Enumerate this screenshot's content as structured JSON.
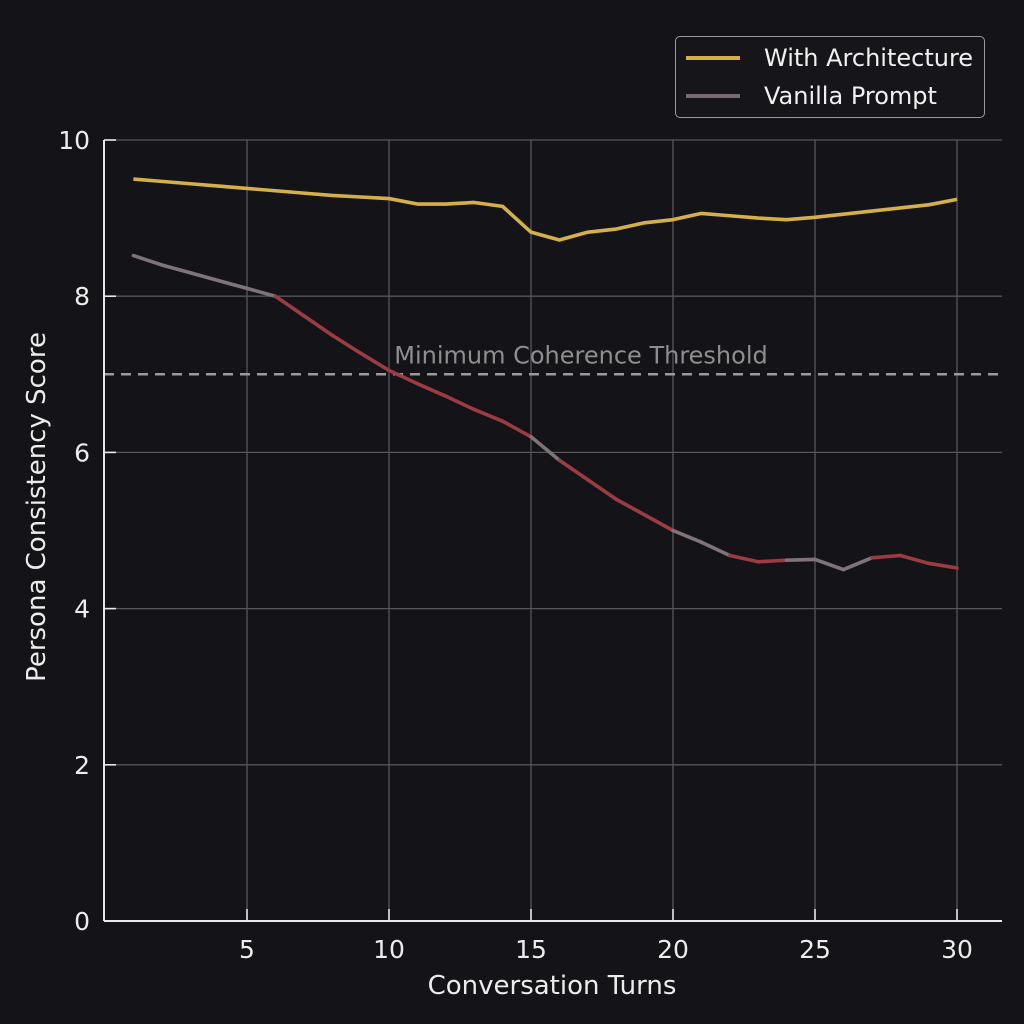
{
  "chart_data": {
    "type": "line",
    "title": "",
    "xlabel": "Conversation Turns",
    "ylabel": "Persona Consistency Score",
    "xlim": [
      0.2,
      31.7
    ],
    "ylim": [
      0,
      10
    ],
    "xticks": [
      5,
      10,
      15,
      20,
      25,
      30
    ],
    "yticks": [
      0,
      2,
      4,
      6,
      8,
      10
    ],
    "grid": true,
    "legend_position": "upper right",
    "x": [
      1,
      2,
      3,
      4,
      5,
      6,
      7,
      8,
      9,
      10,
      11,
      12,
      13,
      14,
      15,
      16,
      17,
      18,
      19,
      20,
      21,
      22,
      23,
      24,
      25,
      26,
      27,
      28,
      29,
      30
    ],
    "series": [
      {
        "name": "With Architecture",
        "color": "#d4b04a",
        "values": [
          9.5,
          9.47,
          9.44,
          9.41,
          9.38,
          9.35,
          9.32,
          9.29,
          9.27,
          9.25,
          9.18,
          9.18,
          9.2,
          9.15,
          8.82,
          8.72,
          8.82,
          8.86,
          8.94,
          8.98,
          9.06,
          9.03,
          9.0,
          8.98,
          9.01,
          9.05,
          9.09,
          9.13,
          9.17,
          9.24
        ]
      },
      {
        "name": "Vanilla Prompt",
        "color": "#8a7a7e",
        "values": [
          8.52,
          8.4,
          8.3,
          8.2,
          8.1,
          8.0,
          7.75,
          7.5,
          7.27,
          7.05,
          6.88,
          6.72,
          6.55,
          6.4,
          6.2,
          5.9,
          5.65,
          5.4,
          5.2,
          5.0,
          4.85,
          4.68,
          4.6,
          4.62,
          4.63,
          4.5,
          4.65,
          4.68,
          4.58,
          4.52
        ]
      }
    ],
    "annotations": [
      {
        "type": "hline",
        "y": 7.0,
        "style": "dashed",
        "color": "#9a9a9a",
        "label": "Minimum Coherence Threshold"
      }
    ]
  },
  "legend": {
    "items": [
      {
        "label": "With Architecture",
        "color": "#d4b04a"
      },
      {
        "label": "Vanilla Prompt",
        "color": "#7a6a70"
      }
    ]
  },
  "colors": {
    "background": "#141418",
    "grid": "#55555c",
    "axis": "#e8e8e8",
    "threshold": "#9a9a9a",
    "vanilla_red": "#9a3c42",
    "vanilla_gray": "#7e7478"
  }
}
